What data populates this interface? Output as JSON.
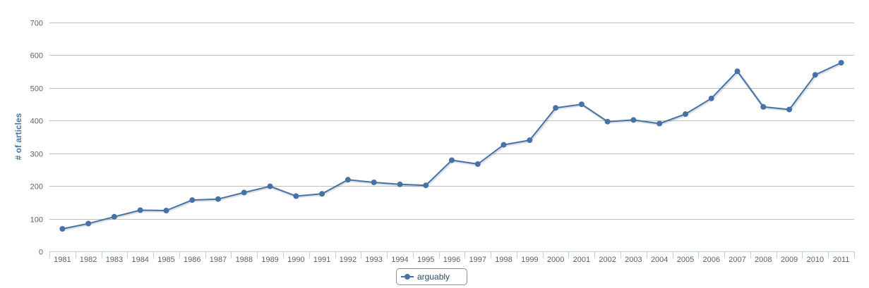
{
  "chart_data": {
    "type": "line",
    "ylabel": "# of articles",
    "xlabel": "",
    "ylim": [
      0,
      700
    ],
    "yticks": [
      0,
      100,
      200,
      300,
      400,
      500,
      600,
      700
    ],
    "grid": true,
    "legend_position": "bottom-center",
    "colors": {
      "series": "#4572a7",
      "axis_title": "#4d759e",
      "grid": "#c0c0c0",
      "legend_border": "#909090"
    },
    "categories": [
      "1981",
      "1982",
      "1983",
      "1984",
      "1985",
      "1986",
      "1987",
      "1988",
      "1989",
      "1990",
      "1991",
      "1992",
      "1993",
      "1994",
      "1995",
      "1996",
      "1997",
      "1998",
      "1999",
      "2000",
      "2001",
      "2002",
      "2003",
      "2004",
      "2005",
      "2006",
      "2007",
      "2008",
      "2009",
      "2010",
      "2011"
    ],
    "series": [
      {
        "name": "arguably",
        "values": [
          69,
          85,
          106,
          126,
          125,
          157,
          160,
          180,
          199,
          169,
          176,
          219,
          211,
          205,
          202,
          279,
          267,
          326,
          340,
          439,
          450,
          397,
          402,
          391,
          420,
          468,
          551,
          442,
          434,
          540,
          577
        ]
      }
    ]
  }
}
